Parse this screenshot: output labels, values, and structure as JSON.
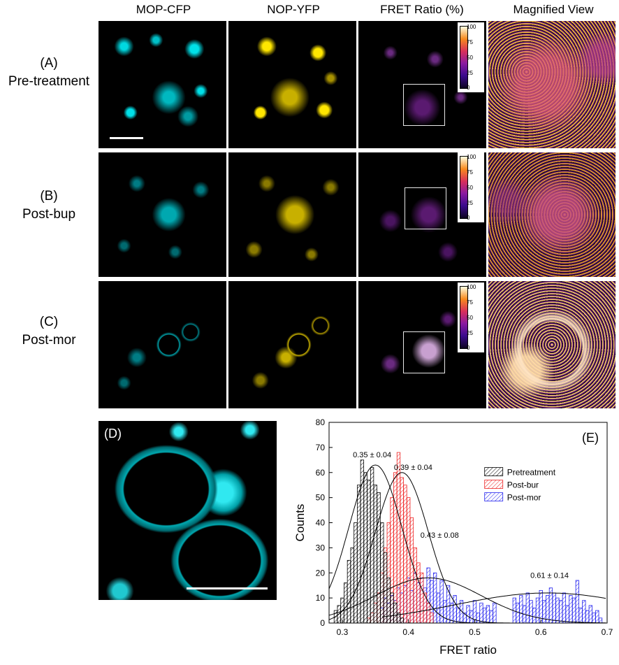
{
  "columns": [
    "MOP-CFP",
    "NOP-YFP",
    "FRET Ratio (%)",
    "Magnified View"
  ],
  "rows": [
    {
      "label": "(A)",
      "sublabel": "Pre-treatment"
    },
    {
      "label": "(B)",
      "sublabel": "Post-bup"
    },
    {
      "label": "(C)",
      "sublabel": "Post-mor"
    }
  ],
  "colorbar_ticks": [
    "100",
    "75",
    "50",
    "25",
    "0"
  ],
  "panel_d_label": "(D)",
  "colors": {
    "cfp": "#00e5ee",
    "yfp": "#ffe600",
    "pre": "#000000",
    "bur": "#ee2222",
    "mor": "#2222ee"
  },
  "chart_data": {
    "type": "bar",
    "panel_label": "(E)",
    "xlabel": "FRET ratio",
    "ylabel": "Counts",
    "xlim": [
      0.28,
      0.7
    ],
    "ylim": [
      0,
      80
    ],
    "xticks": [
      0.3,
      0.4,
      0.5,
      0.6,
      0.7
    ],
    "xtick_labels": [
      "0.3",
      "0.4",
      "0.5",
      "0.6",
      "0.7"
    ],
    "yticks": [
      0,
      10,
      20,
      30,
      40,
      50,
      60,
      70,
      80
    ],
    "ytick_labels": [
      "0",
      "10",
      "20",
      "30",
      "40",
      "50",
      "60",
      "70",
      "80"
    ],
    "legend_position": "top-right",
    "series": [
      {
        "name": "Pretreatment",
        "color": "#000000",
        "fit": {
          "mean": 0.35,
          "sd": 0.04,
          "peak": 63
        },
        "bins": [
          [
            0.29,
            5
          ],
          [
            0.295,
            7
          ],
          [
            0.3,
            10
          ],
          [
            0.305,
            16
          ],
          [
            0.31,
            25
          ],
          [
            0.315,
            30
          ],
          [
            0.32,
            40
          ],
          [
            0.325,
            55
          ],
          [
            0.33,
            65
          ],
          [
            0.335,
            60
          ],
          [
            0.34,
            57
          ],
          [
            0.345,
            62
          ],
          [
            0.35,
            55
          ],
          [
            0.355,
            52
          ],
          [
            0.36,
            40
          ],
          [
            0.365,
            28
          ],
          [
            0.37,
            18
          ],
          [
            0.375,
            12
          ],
          [
            0.38,
            8
          ],
          [
            0.385,
            4
          ],
          [
            0.39,
            2
          ]
        ]
      },
      {
        "name": "Post-bur",
        "color": "#ee2222",
        "fit": {
          "mean": 0.39,
          "sd": 0.04,
          "peak": 60
        },
        "bins": [
          [
            0.34,
            2
          ],
          [
            0.345,
            4
          ],
          [
            0.35,
            8
          ],
          [
            0.355,
            12
          ],
          [
            0.36,
            20
          ],
          [
            0.365,
            30
          ],
          [
            0.37,
            40
          ],
          [
            0.375,
            50
          ],
          [
            0.38,
            60
          ],
          [
            0.385,
            68
          ],
          [
            0.39,
            58
          ],
          [
            0.395,
            55
          ],
          [
            0.4,
            50
          ],
          [
            0.405,
            42
          ],
          [
            0.41,
            30
          ],
          [
            0.415,
            24
          ],
          [
            0.42,
            20
          ],
          [
            0.425,
            12
          ],
          [
            0.43,
            8
          ],
          [
            0.435,
            4
          ]
        ]
      },
      {
        "name": "Post-mor",
        "color": "#2222ee",
        "fit": {
          "mean": 0.43,
          "sd": 0.08,
          "peak": 18
        },
        "bins": [
          [
            0.36,
            6
          ],
          [
            0.365,
            10
          ],
          [
            0.37,
            8
          ],
          [
            0.375,
            11
          ],
          [
            0.38,
            9
          ],
          [
            0.385,
            14
          ],
          [
            0.39,
            12
          ],
          [
            0.395,
            15
          ],
          [
            0.4,
            18
          ],
          [
            0.405,
            13
          ],
          [
            0.41,
            20
          ],
          [
            0.415,
            16
          ],
          [
            0.42,
            18
          ],
          [
            0.425,
            14
          ],
          [
            0.43,
            22
          ],
          [
            0.435,
            17
          ],
          [
            0.44,
            20
          ],
          [
            0.445,
            12
          ],
          [
            0.45,
            17
          ],
          [
            0.455,
            9
          ],
          [
            0.46,
            15
          ],
          [
            0.465,
            8
          ],
          [
            0.47,
            11
          ],
          [
            0.475,
            6
          ],
          [
            0.48,
            9
          ],
          [
            0.485,
            4
          ],
          [
            0.49,
            7
          ],
          [
            0.495,
            5
          ],
          [
            0.5,
            9
          ],
          [
            0.505,
            4
          ],
          [
            0.51,
            8
          ],
          [
            0.515,
            6
          ],
          [
            0.52,
            7
          ],
          [
            0.525,
            5
          ],
          [
            0.53,
            8
          ],
          [
            0.56,
            10
          ],
          [
            0.565,
            8
          ],
          [
            0.57,
            11
          ],
          [
            0.575,
            7
          ],
          [
            0.58,
            12
          ],
          [
            0.585,
            9
          ],
          [
            0.59,
            6
          ],
          [
            0.595,
            10
          ],
          [
            0.6,
            13
          ],
          [
            0.605,
            9
          ],
          [
            0.61,
            11
          ],
          [
            0.615,
            14
          ],
          [
            0.62,
            12
          ],
          [
            0.625,
            10
          ],
          [
            0.63,
            9
          ],
          [
            0.635,
            12
          ],
          [
            0.64,
            7
          ],
          [
            0.645,
            11
          ],
          [
            0.65,
            10
          ],
          [
            0.655,
            17
          ],
          [
            0.66,
            6
          ],
          [
            0.665,
            9
          ],
          [
            0.67,
            5
          ],
          [
            0.675,
            7
          ],
          [
            0.68,
            4
          ],
          [
            0.685,
            5
          ],
          [
            0.69,
            2
          ]
        ]
      },
      {
        "name": "",
        "color": "#000000",
        "fit": {
          "mean": 0.61,
          "sd": 0.14,
          "peak": 12
        }
      }
    ],
    "annotations": [
      "0.35 ± 0.04",
      "0.39 ± 0.04",
      "0.43 ± 0.08",
      "0.61 ± 0.14"
    ]
  }
}
